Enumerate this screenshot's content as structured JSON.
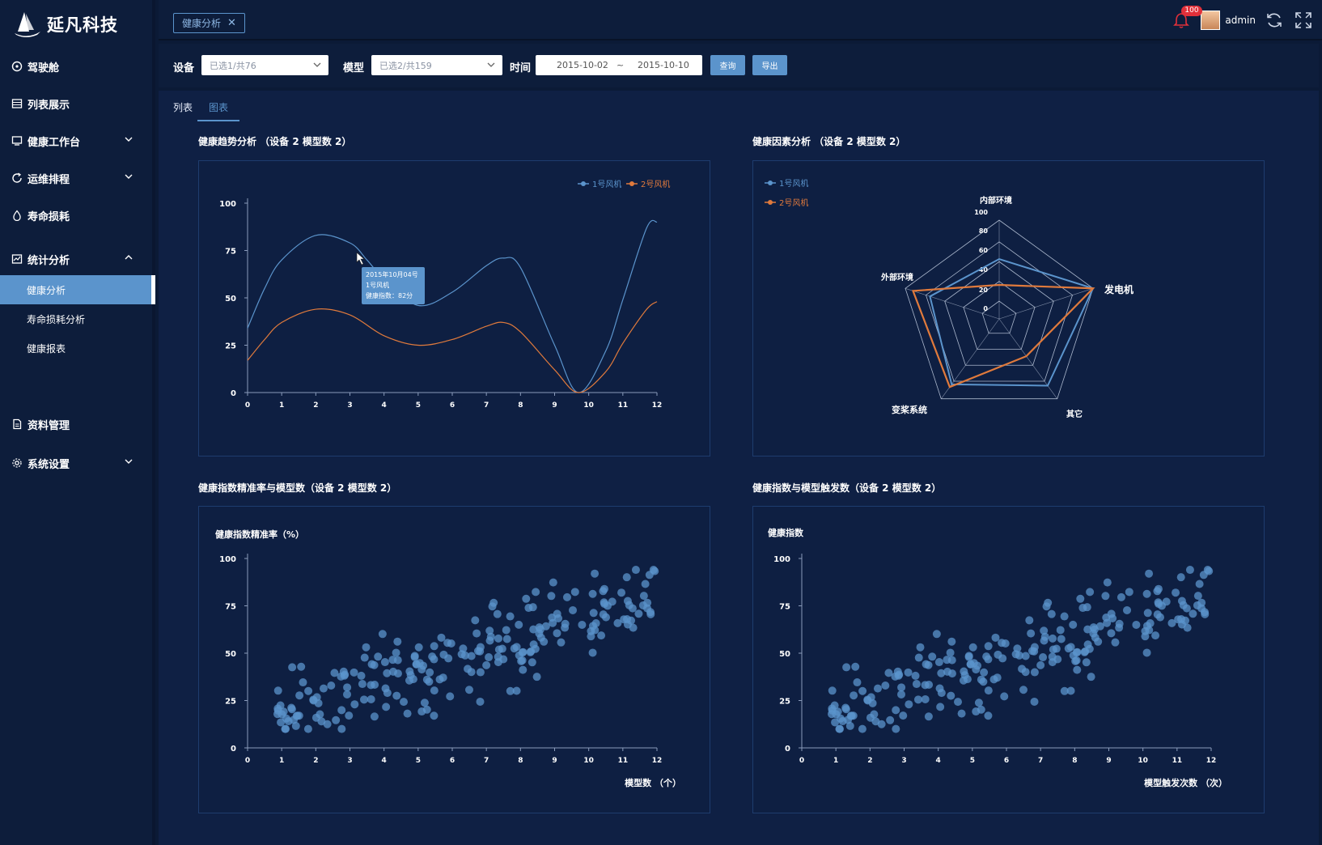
{
  "app": {
    "logo": "延凡科技"
  },
  "sidebar": {
    "items": [
      {
        "label": "驾驶舱",
        "icon": "dashboard-icon"
      },
      {
        "label": "列表展示",
        "icon": "list-icon"
      },
      {
        "label": "健康工作台",
        "icon": "monitor-icon"
      },
      {
        "label": "运维排程",
        "icon": "refresh-icon"
      },
      {
        "label": "寿命损耗",
        "icon": "drop-icon"
      },
      {
        "label": "统计分析",
        "icon": "chart-icon"
      },
      {
        "label": "资料管理",
        "icon": "document-icon"
      },
      {
        "label": "系统设置",
        "icon": "gear-icon"
      }
    ],
    "subitems": [
      "健康分析",
      "寿命损耗分析",
      "健康报表"
    ]
  },
  "topbar": {
    "tag": "健康分析",
    "notify_count": "100",
    "user": "admin"
  },
  "filters": {
    "device_label": "设备",
    "device_value": "已选1/共76",
    "model_label": "模型",
    "model_value": "已选2/共159",
    "time_label": "时间",
    "date_start": "2015-10-02",
    "date_sep": "~",
    "date_end": "2015-10-10",
    "query_button": "查询",
    "export_button": "导出"
  },
  "tabs": [
    "列表",
    "图表"
  ],
  "colors": {
    "series1": "#5b94cc",
    "series2": "#e07a3c",
    "scatter": "#5b94cc"
  },
  "panels": {
    "trend": {
      "title": "健康趋势分析 （设备 2 模型数 2）"
    },
    "radar": {
      "title": "健康因素分析 （设备 2 模型数 2）"
    },
    "precision": {
      "title": "健康指数精准率与模型数（设备 2 模型数 2）"
    },
    "trigger": {
      "title": "健康指数与模型触发数（设备 2 模型数 2）"
    }
  },
  "chart_data": [
    {
      "id": "trend",
      "type": "line",
      "series": [
        {
          "name": "1号风机",
          "x": [
            0,
            0.5,
            1,
            2,
            3,
            3.5,
            4,
            5,
            6,
            7,
            7.5,
            8,
            9,
            9.7,
            10.5,
            11,
            11.7,
            12
          ],
          "values": [
            34,
            55,
            70,
            83,
            79,
            70,
            60,
            46,
            53,
            67,
            71,
            66,
            25,
            0,
            22,
            49,
            87,
            90
          ]
        },
        {
          "name": "2号风机",
          "x": [
            0,
            0.5,
            1,
            2,
            3,
            4,
            5,
            6,
            7,
            7.5,
            8,
            9,
            9.7,
            10.5,
            11,
            11.7,
            12
          ],
          "values": [
            17,
            28,
            37,
            44,
            41,
            30,
            25,
            28,
            35,
            37,
            32,
            12,
            0,
            11,
            26,
            44,
            48
          ]
        }
      ],
      "ylim": [
        0,
        100
      ],
      "xlim": [
        0,
        12
      ],
      "yticks": [
        0,
        25,
        50,
        75,
        100
      ],
      "xticks": [
        0,
        1,
        2,
        3,
        4,
        5,
        6,
        7,
        8,
        9,
        10,
        11,
        12
      ],
      "tooltip": {
        "line1": "2015年10月04号",
        "line2": "1号风机",
        "line3": "健康指数：82分"
      }
    },
    {
      "id": "radar",
      "type": "radar",
      "indicators": [
        "内部环境",
        "发电机",
        "其它",
        "变桨系统",
        "外部环境"
      ],
      "max": 100,
      "rings": [
        0,
        20,
        40,
        60,
        80,
        100
      ],
      "series": [
        {
          "name": "1号风机",
          "values": [
            52,
            100,
            80,
            78,
            68
          ]
        },
        {
          "name": "2号风机",
          "values": [
            20,
            100,
            35,
            82,
            90
          ]
        }
      ]
    },
    {
      "id": "precision",
      "type": "scatter",
      "ylabel": "健康指数精准率（%）",
      "xlabel": "模型数 （个）",
      "xlim": [
        0,
        12
      ],
      "ylim": [
        0,
        100
      ],
      "xticks": [
        0,
        1,
        2,
        3,
        4,
        5,
        6,
        7,
        8,
        9,
        10,
        11,
        12
      ],
      "yticks": [
        0,
        25,
        50,
        75,
        100
      ],
      "seed": 7,
      "count": 220
    },
    {
      "id": "trigger",
      "type": "scatter",
      "ylabel": "健康指数",
      "xlabel": "模型触发次数 （次）",
      "xlim": [
        0,
        12
      ],
      "ylim": [
        0,
        100
      ],
      "xticks": [
        0,
        1,
        2,
        3,
        4,
        5,
        6,
        7,
        8,
        9,
        10,
        11,
        12
      ],
      "yticks": [
        0,
        25,
        50,
        75,
        100
      ],
      "seed": 7,
      "count": 220
    }
  ]
}
